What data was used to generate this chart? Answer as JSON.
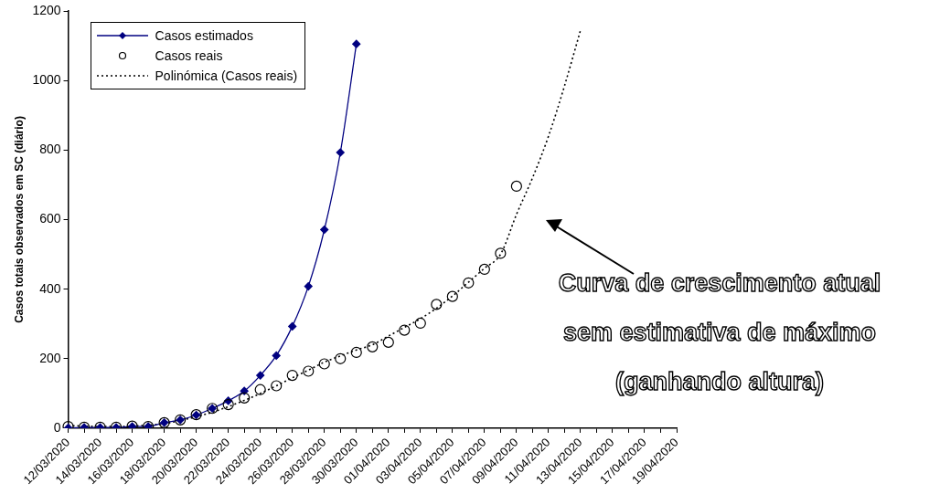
{
  "chart_data": {
    "type": "line",
    "ylabel": "Casos totais observados em SC (diário)",
    "categories": [
      "12/03/2020",
      null,
      "14/03/2020",
      null,
      "16/03/2020",
      null,
      "18/03/2020",
      null,
      "20/03/2020",
      null,
      "22/03/2020",
      null,
      "24/03/2020",
      null,
      "26/03/2020",
      null,
      "28/03/2020",
      null,
      "30/03/2020",
      null,
      "01/04/2020",
      null,
      "03/04/2020",
      null,
      "05/04/2020",
      null,
      "07/04/2020",
      null,
      "09/04/2020",
      null,
      "11/04/2020",
      null,
      "13/04/2020",
      null,
      "15/04/2020",
      null,
      "17/04/2020",
      null,
      "19/04/2020"
    ],
    "series": [
      {
        "name": "Casos estimados",
        "type": "line",
        "color": "#000080",
        "marker": "diamond",
        "line_style": "solid",
        "values": [
          1,
          2,
          2,
          2,
          5,
          5,
          16,
          24,
          38,
          57,
          79,
          107,
          152,
          209,
          293,
          408,
          571,
          793,
          1105,
          null,
          null,
          null,
          null,
          null,
          null,
          null,
          null,
          null,
          null,
          null,
          null,
          null,
          null,
          null,
          null,
          null,
          null,
          null,
          null
        ]
      },
      {
        "name": "Casos reais",
        "type": "scatter",
        "color": "#000000",
        "marker": "circle",
        "values": [
          5,
          3,
          3,
          3,
          6,
          5,
          16,
          24,
          39,
          57,
          68,
          87,
          111,
          122,
          152,
          164,
          185,
          200,
          218,
          234,
          247,
          282,
          302,
          356,
          379,
          418,
          457,
          503,
          696,
          null,
          null,
          null,
          null,
          null,
          null,
          null,
          null,
          null,
          null
        ]
      },
      {
        "name": "Polinómica (Casos reais)",
        "type": "line",
        "color": "#000000",
        "marker": "none",
        "line_style": "dotted",
        "values": [
          8,
          6,
          5,
          5,
          6,
          9,
          13,
          22,
          33,
          46,
          62,
          80,
          100,
          122,
          145,
          167,
          190,
          208,
          225,
          240,
          265,
          290,
          315,
          345,
          380,
          420,
          460,
          500,
          615,
          720,
          840,
          985,
          1145,
          null,
          null,
          null,
          null,
          null,
          null
        ]
      }
    ],
    "ylim": [
      0,
      1200
    ],
    "yticks": [
      0,
      200,
      400,
      600,
      800,
      1000,
      1200
    ],
    "grid": false,
    "legend": "top left",
    "annotations": [
      "Curva de crescimento atual\nsem estimativa de máximo\n(ganhando altura)"
    ]
  }
}
